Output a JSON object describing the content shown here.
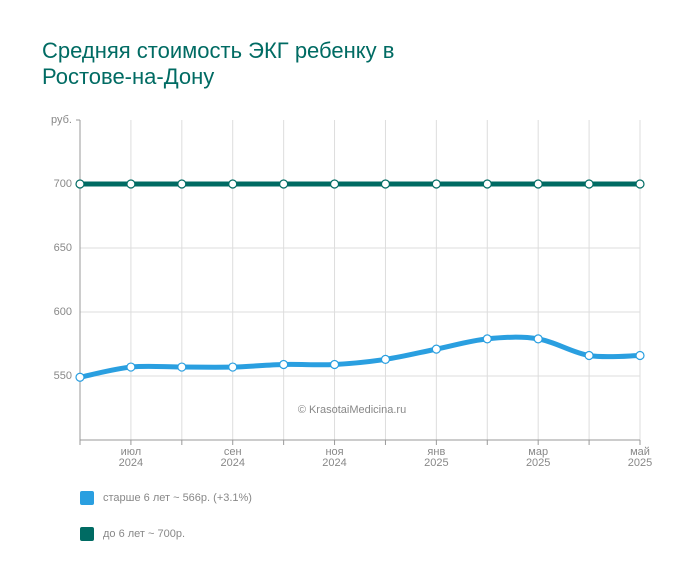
{
  "chart_data": {
    "type": "line",
    "title": "Средняя стоимость ЭКГ ребенку в Ростове-на-Дону",
    "watermark": "© KrasotaiMedicina.ru",
    "categories": [
      null,
      "июл 2024",
      null,
      "сен 2024",
      null,
      "ноя 2024",
      null,
      "янв 2025",
      null,
      "мар 2025",
      null,
      "май 2025"
    ],
    "series": [
      {
        "name": "старше 6 лет ~ 566р. (+3.1%)",
        "color": "#2a9fe0",
        "values": [
          549,
          557,
          557,
          557,
          559,
          559,
          563,
          571,
          579,
          579,
          566,
          566
        ]
      },
      {
        "name": "до 6 лет ~ 700р.",
        "color": "#006b63",
        "values": [
          700,
          700,
          700,
          700,
          700,
          700,
          700,
          700,
          700,
          700,
          700,
          700
        ]
      }
    ],
    "ylim": [
      500,
      750
    ],
    "yticks": [
      550,
      600,
      650,
      700,
      {
        "value": 750,
        "label": "руб."
      }
    ],
    "grid": true
  }
}
